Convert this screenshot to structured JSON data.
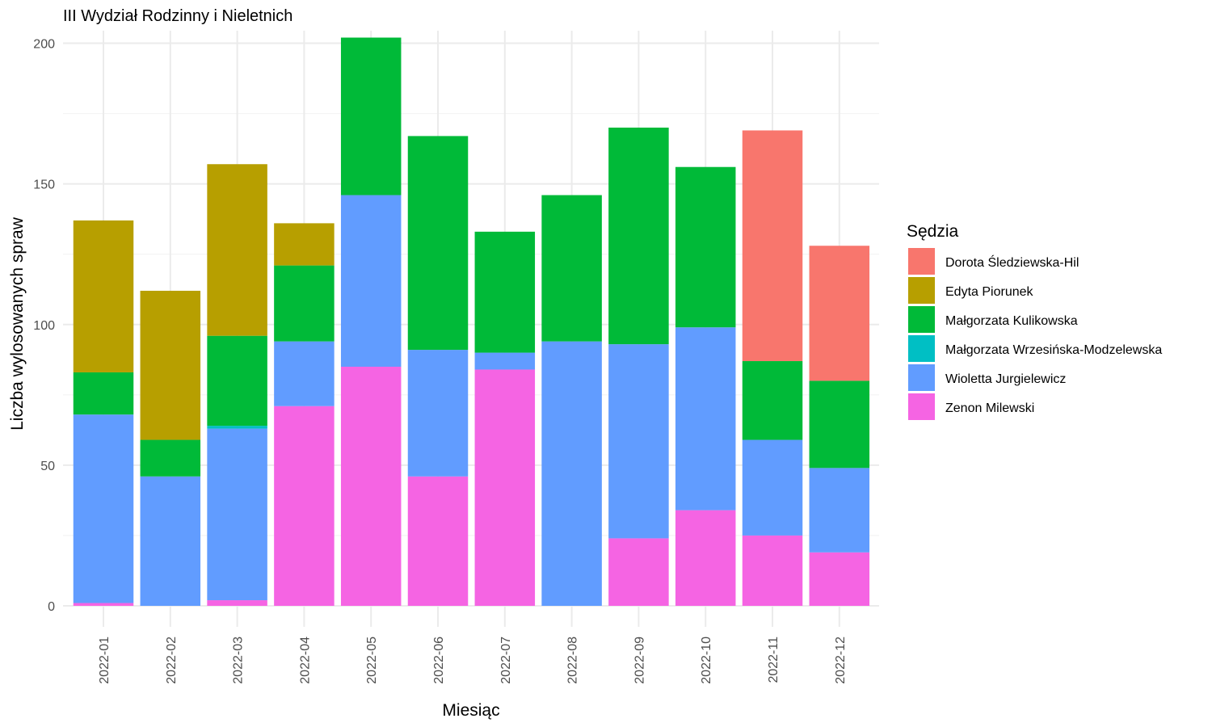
{
  "chart_data": {
    "type": "bar",
    "stacked": true,
    "title": "III Wydział Rodzinny i Nieletnich",
    "xlabel": "Miesiąc",
    "ylabel": "Liczba wylosowanych spraw",
    "ylim": [
      0,
      210
    ],
    "yticks": [
      0,
      50,
      100,
      150,
      200
    ],
    "grid": true,
    "legend_title": "Sędzia",
    "legend_position": "right",
    "categories": [
      "2022-01",
      "2022-02",
      "2022-03",
      "2022-04",
      "2022-05",
      "2022-06",
      "2022-07",
      "2022-08",
      "2022-09",
      "2022-10",
      "2022-11",
      "2022-12"
    ],
    "series": [
      {
        "name": "Dorota Śledziewska-Hil",
        "color": "#F8766D",
        "values": [
          0,
          0,
          0,
          0,
          0,
          0,
          0,
          0,
          0,
          0,
          82,
          48
        ]
      },
      {
        "name": "Edyta Piorunek",
        "color": "#B79F00",
        "values": [
          54,
          53,
          61,
          15,
          0,
          0,
          0,
          0,
          0,
          0,
          0,
          0
        ]
      },
      {
        "name": "Małgorzata Kulikowska",
        "color": "#00BA38",
        "values": [
          15,
          13,
          32,
          27,
          56,
          76,
          43,
          52,
          77,
          57,
          28,
          31
        ]
      },
      {
        "name": "Małgorzata Wrzesińska-Modzelewska",
        "color": "#00BFC4",
        "values": [
          0,
          0,
          1,
          0,
          0,
          0,
          0,
          0,
          0,
          0,
          0,
          0
        ]
      },
      {
        "name": "Wioletta Jurgielewicz",
        "color": "#619CFF",
        "values": [
          67,
          46,
          61,
          23,
          61,
          45,
          6,
          94,
          69,
          65,
          34,
          30
        ]
      },
      {
        "name": "Zenon Milewski",
        "color": "#F564E3",
        "values": [
          1,
          0,
          2,
          71,
          85,
          46,
          84,
          0,
          24,
          34,
          25,
          19
        ]
      }
    ]
  }
}
